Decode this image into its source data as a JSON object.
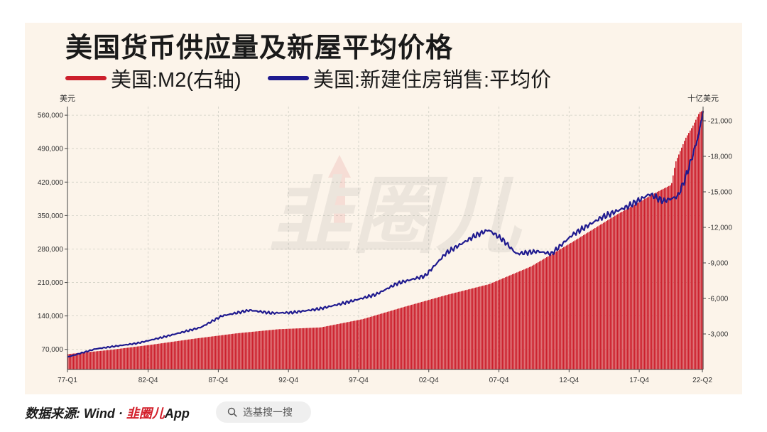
{
  "title": "美国货币供应量及新屋平均价格",
  "legend": [
    {
      "label": "美国:M2(右轴)",
      "color": "#cc1f2c"
    },
    {
      "label": "美国:新建住房销售:平均价",
      "color": "#1f1a8f"
    }
  ],
  "units": {
    "left": "美元",
    "right": "十亿美元"
  },
  "watermark": "韭圈儿",
  "footer": {
    "source_prefix": "数据来源: Wind · ",
    "brand": "韭圈儿",
    "app": "App",
    "search_placeholder": "选基搜一搜",
    "search_icon": "search-icon"
  },
  "colors": {
    "panel_bg": "#fcf4ea",
    "bar": "#cc1f2c",
    "line": "#1f1a8f"
  },
  "chart_data": {
    "type": "bar+line",
    "title": "美国货币供应量及新屋平均价格",
    "x_ticks": [
      "77-Q1",
      "82-Q4",
      "87-Q4",
      "92-Q4",
      "97-Q4",
      "02-Q4",
      "07-Q4",
      "12-Q4",
      "17-Q4",
      "22-Q2"
    ],
    "x_range": [
      1977.0,
      2022.3
    ],
    "left_axis": {
      "unit": "美元",
      "ticks": [
        "70,000",
        "140,000",
        "210,000",
        "280,000",
        "350,000",
        "420,000",
        "490,000",
        "560,000"
      ],
      "range": [
        28000,
        578000
      ]
    },
    "right_axis": {
      "unit": "十亿美元",
      "ticks": [
        "3,000",
        "6,000",
        "9,000",
        "12,000",
        "15,000",
        "18,000",
        "21,000"
      ],
      "range": [
        0,
        22200
      ]
    },
    "grid": true,
    "series": [
      {
        "name": "美国:M2(右轴)",
        "type": "bar",
        "axis": "right",
        "points": [
          [
            1977.0,
            1300
          ],
          [
            1980.0,
            1650
          ],
          [
            1983.0,
            2100
          ],
          [
            1986.0,
            2600
          ],
          [
            1989.0,
            3050
          ],
          [
            1992.0,
            3400
          ],
          [
            1995.0,
            3550
          ],
          [
            1998.0,
            4250
          ],
          [
            2001.0,
            5300
          ],
          [
            2004.0,
            6300
          ],
          [
            2007.0,
            7200
          ],
          [
            2010.0,
            8700
          ],
          [
            2013.0,
            10800
          ],
          [
            2016.0,
            13000
          ],
          [
            2019.0,
            15000
          ],
          [
            2020.0,
            15600
          ],
          [
            2020.3,
            17500
          ],
          [
            2021.0,
            19500
          ],
          [
            2021.5,
            20500
          ],
          [
            2022.0,
            21700
          ],
          [
            2022.3,
            21900
          ]
        ]
      },
      {
        "name": "美国:新建住房销售:平均价",
        "type": "line",
        "axis": "left",
        "points": [
          [
            1977.0,
            54000
          ],
          [
            1979.0,
            71000
          ],
          [
            1982.0,
            83000
          ],
          [
            1984.0,
            97000
          ],
          [
            1986.5,
            116000
          ],
          [
            1988.0,
            140000
          ],
          [
            1990.0,
            152000
          ],
          [
            1991.5,
            146000
          ],
          [
            1993.0,
            147000
          ],
          [
            1995.0,
            155000
          ],
          [
            1997.0,
            169000
          ],
          [
            1999.0,
            185000
          ],
          [
            2000.5,
            208000
          ],
          [
            2002.5,
            224000
          ],
          [
            2004.0,
            272000
          ],
          [
            2006.0,
            307000
          ],
          [
            2007.0,
            320000
          ],
          [
            2008.0,
            300000
          ],
          [
            2009.0,
            270000
          ],
          [
            2010.5,
            275000
          ],
          [
            2011.5,
            270000
          ],
          [
            2013.0,
            310000
          ],
          [
            2015.0,
            345000
          ],
          [
            2017.0,
            370000
          ],
          [
            2018.5,
            395000
          ],
          [
            2019.5,
            380000
          ],
          [
            2020.5,
            390000
          ],
          [
            2021.0,
            425000
          ],
          [
            2021.5,
            470000
          ],
          [
            2022.0,
            520000
          ],
          [
            2022.3,
            570000
          ]
        ]
      }
    ]
  }
}
